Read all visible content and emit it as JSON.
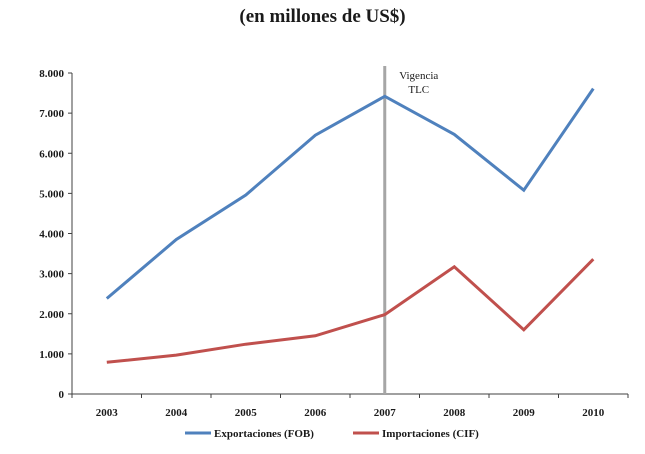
{
  "chart_data": {
    "type": "line",
    "title": "(en millones de US$)",
    "x": [
      "2003",
      "2004",
      "2005",
      "2006",
      "2007",
      "2008",
      "2009",
      "2010"
    ],
    "yticks": [
      "0",
      "1.000",
      "2.000",
      "3.000",
      "4.000",
      "5.000",
      "6.000",
      "7.000",
      "8.000"
    ],
    "ylim": [
      0,
      8000
    ],
    "series": [
      {
        "name": "Exportaciones (FOB)",
        "color": "#4f81bd",
        "values": [
          2380,
          3850,
          4960,
          6450,
          7420,
          6470,
          5080,
          7610
        ]
      },
      {
        "name": "Importaciones (CIF)",
        "color": "#c0504d",
        "values": [
          790,
          970,
          1240,
          1450,
          1980,
          3170,
          1600,
          3360
        ]
      }
    ],
    "annotation": {
      "x": "2007",
      "lines": [
        "Vigencia",
        "TLC"
      ],
      "color": "#a6a6a6"
    },
    "legend": "bottom",
    "grid": false
  }
}
